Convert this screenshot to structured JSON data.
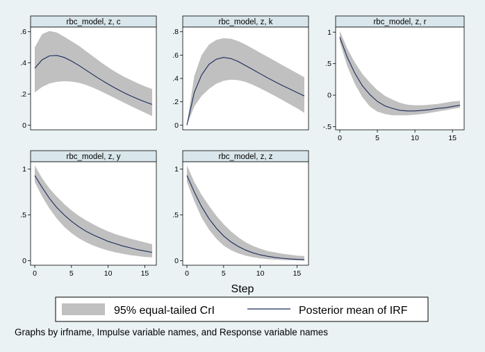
{
  "figure": {
    "xlabel": "Step",
    "note": "Graphs by irfname, Impulse variable names, and Response variable names",
    "legend": {
      "band_label": "95% equal-tailed CrI",
      "line_label": "Posterior mean of IRF",
      "position": "bottom"
    },
    "colors": {
      "background": "#eaf2f3",
      "band": "#c0c0c0",
      "line": "#1a2a5c",
      "header": "#d9e6eb"
    }
  },
  "chart_data": [
    {
      "type": "area",
      "title": "rbc_model, z, c",
      "x": [
        0,
        1,
        2,
        3,
        4,
        5,
        6,
        7,
        8,
        9,
        10,
        11,
        12,
        13,
        14,
        15,
        16
      ],
      "mean": [
        0.365,
        0.42,
        0.445,
        0.448,
        0.435,
        0.412,
        0.384,
        0.353,
        0.322,
        0.292,
        0.264,
        0.237,
        0.212,
        0.19,
        0.169,
        0.15,
        0.133
      ],
      "lower": [
        0.21,
        0.245,
        0.268,
        0.278,
        0.282,
        0.28,
        0.272,
        0.258,
        0.24,
        0.218,
        0.195,
        0.172,
        0.148,
        0.125,
        0.102,
        0.08,
        0.058
      ],
      "upper": [
        0.5,
        0.585,
        0.605,
        0.595,
        0.568,
        0.54,
        0.51,
        0.475,
        0.44,
        0.405,
        0.372,
        0.342,
        0.315,
        0.292,
        0.27,
        0.25,
        0.232
      ],
      "xlim": [
        0,
        16
      ],
      "ylim": [
        -0.03,
        0.63
      ],
      "xticks": [],
      "yticks": [
        0,
        0.2,
        0.4,
        0.6
      ],
      "yticklabels": [
        "0",
        ".2",
        ".4",
        ".6"
      ]
    },
    {
      "type": "area",
      "title": "rbc_model, z, k",
      "x": [
        0,
        1,
        2,
        3,
        4,
        5,
        6,
        7,
        8,
        9,
        10,
        11,
        12,
        13,
        14,
        15,
        16
      ],
      "mean": [
        0,
        0.28,
        0.43,
        0.52,
        0.565,
        0.58,
        0.57,
        0.545,
        0.51,
        0.475,
        0.44,
        0.405,
        0.372,
        0.34,
        0.31,
        0.28,
        0.25
      ],
      "lower": [
        0,
        0.16,
        0.25,
        0.31,
        0.355,
        0.38,
        0.39,
        0.385,
        0.37,
        0.345,
        0.315,
        0.282,
        0.25,
        0.215,
        0.18,
        0.145,
        0.105
      ],
      "upper": [
        0.01,
        0.42,
        0.6,
        0.69,
        0.73,
        0.745,
        0.74,
        0.72,
        0.69,
        0.655,
        0.62,
        0.585,
        0.55,
        0.515,
        0.48,
        0.445,
        0.41
      ],
      "xlim": [
        0,
        16
      ],
      "ylim": [
        -0.04,
        0.84
      ],
      "xticks": [],
      "yticks": [
        0,
        0.2,
        0.4,
        0.6,
        0.8
      ],
      "yticklabels": [
        "0",
        ".2",
        ".4",
        ".6",
        ".8"
      ]
    },
    {
      "type": "area",
      "title": "rbc_model, z, r",
      "x": [
        0,
        1,
        2,
        3,
        4,
        5,
        6,
        7,
        8,
        9,
        10,
        11,
        12,
        13,
        14,
        15,
        16
      ],
      "mean": [
        0.92,
        0.6,
        0.35,
        0.15,
        0.01,
        -0.1,
        -0.17,
        -0.21,
        -0.24,
        -0.25,
        -0.25,
        -0.24,
        -0.23,
        -0.21,
        -0.2,
        -0.18,
        -0.16
      ],
      "lower": [
        0.84,
        0.46,
        0.18,
        -0.03,
        -0.18,
        -0.26,
        -0.3,
        -0.32,
        -0.32,
        -0.32,
        -0.31,
        -0.3,
        -0.28,
        -0.26,
        -0.24,
        -0.22,
        -0.2
      ],
      "upper": [
        1.02,
        0.74,
        0.52,
        0.34,
        0.2,
        0.08,
        -0.01,
        -0.07,
        -0.12,
        -0.15,
        -0.16,
        -0.16,
        -0.15,
        -0.14,
        -0.12,
        -0.1,
        -0.09
      ],
      "xlim": [
        0,
        16
      ],
      "ylim": [
        -0.55,
        1.08
      ],
      "xticks": [
        0,
        5,
        10,
        15
      ],
      "yticks": [
        -0.5,
        0,
        0.5,
        1
      ],
      "yticklabels": [
        "-.5",
        "0",
        ".5",
        "1"
      ]
    },
    {
      "type": "area",
      "title": "rbc_model, z, y",
      "x": [
        0,
        1,
        2,
        3,
        4,
        5,
        6,
        7,
        8,
        9,
        10,
        11,
        12,
        13,
        14,
        15,
        16
      ],
      "mean": [
        0.93,
        0.8,
        0.68,
        0.58,
        0.5,
        0.43,
        0.37,
        0.32,
        0.28,
        0.245,
        0.21,
        0.185,
        0.16,
        0.14,
        0.12,
        0.105,
        0.09
      ],
      "lower": [
        0.86,
        0.7,
        0.57,
        0.46,
        0.37,
        0.3,
        0.245,
        0.2,
        0.165,
        0.135,
        0.11,
        0.09,
        0.075,
        0.06,
        0.05,
        0.04,
        0.035
      ],
      "upper": [
        1.04,
        0.9,
        0.79,
        0.7,
        0.62,
        0.55,
        0.49,
        0.44,
        0.395,
        0.355,
        0.32,
        0.29,
        0.265,
        0.24,
        0.22,
        0.2,
        0.18
      ],
      "xlim": [
        0,
        16
      ],
      "ylim": [
        -0.05,
        1.08
      ],
      "xticks": [
        0,
        5,
        10,
        15
      ],
      "yticks": [
        0,
        0.5,
        1
      ],
      "yticklabels": [
        "0",
        ".5",
        "1"
      ]
    },
    {
      "type": "area",
      "title": "rbc_model, z, z",
      "x": [
        0,
        1,
        2,
        3,
        4,
        5,
        6,
        7,
        8,
        9,
        10,
        11,
        12,
        13,
        14,
        15,
        16
      ],
      "mean": [
        0.93,
        0.75,
        0.59,
        0.46,
        0.355,
        0.27,
        0.205,
        0.155,
        0.115,
        0.085,
        0.063,
        0.047,
        0.035,
        0.026,
        0.019,
        0.014,
        0.01
      ],
      "lower": [
        0.86,
        0.65,
        0.47,
        0.34,
        0.24,
        0.165,
        0.115,
        0.08,
        0.055,
        0.037,
        0.025,
        0.017,
        0.011,
        0.007,
        0.004,
        0.002,
        0.001
      ],
      "upper": [
        1.04,
        0.86,
        0.72,
        0.6,
        0.49,
        0.4,
        0.32,
        0.255,
        0.2,
        0.16,
        0.13,
        0.105,
        0.09,
        0.075,
        0.065,
        0.055,
        0.05
      ],
      "xlim": [
        0,
        16
      ],
      "ylim": [
        -0.05,
        1.08
      ],
      "xticks": [
        0,
        5,
        10,
        15
      ],
      "yticks": [
        0,
        0.5,
        1
      ],
      "yticklabels": [
        "0",
        ".5",
        "1"
      ]
    }
  ]
}
